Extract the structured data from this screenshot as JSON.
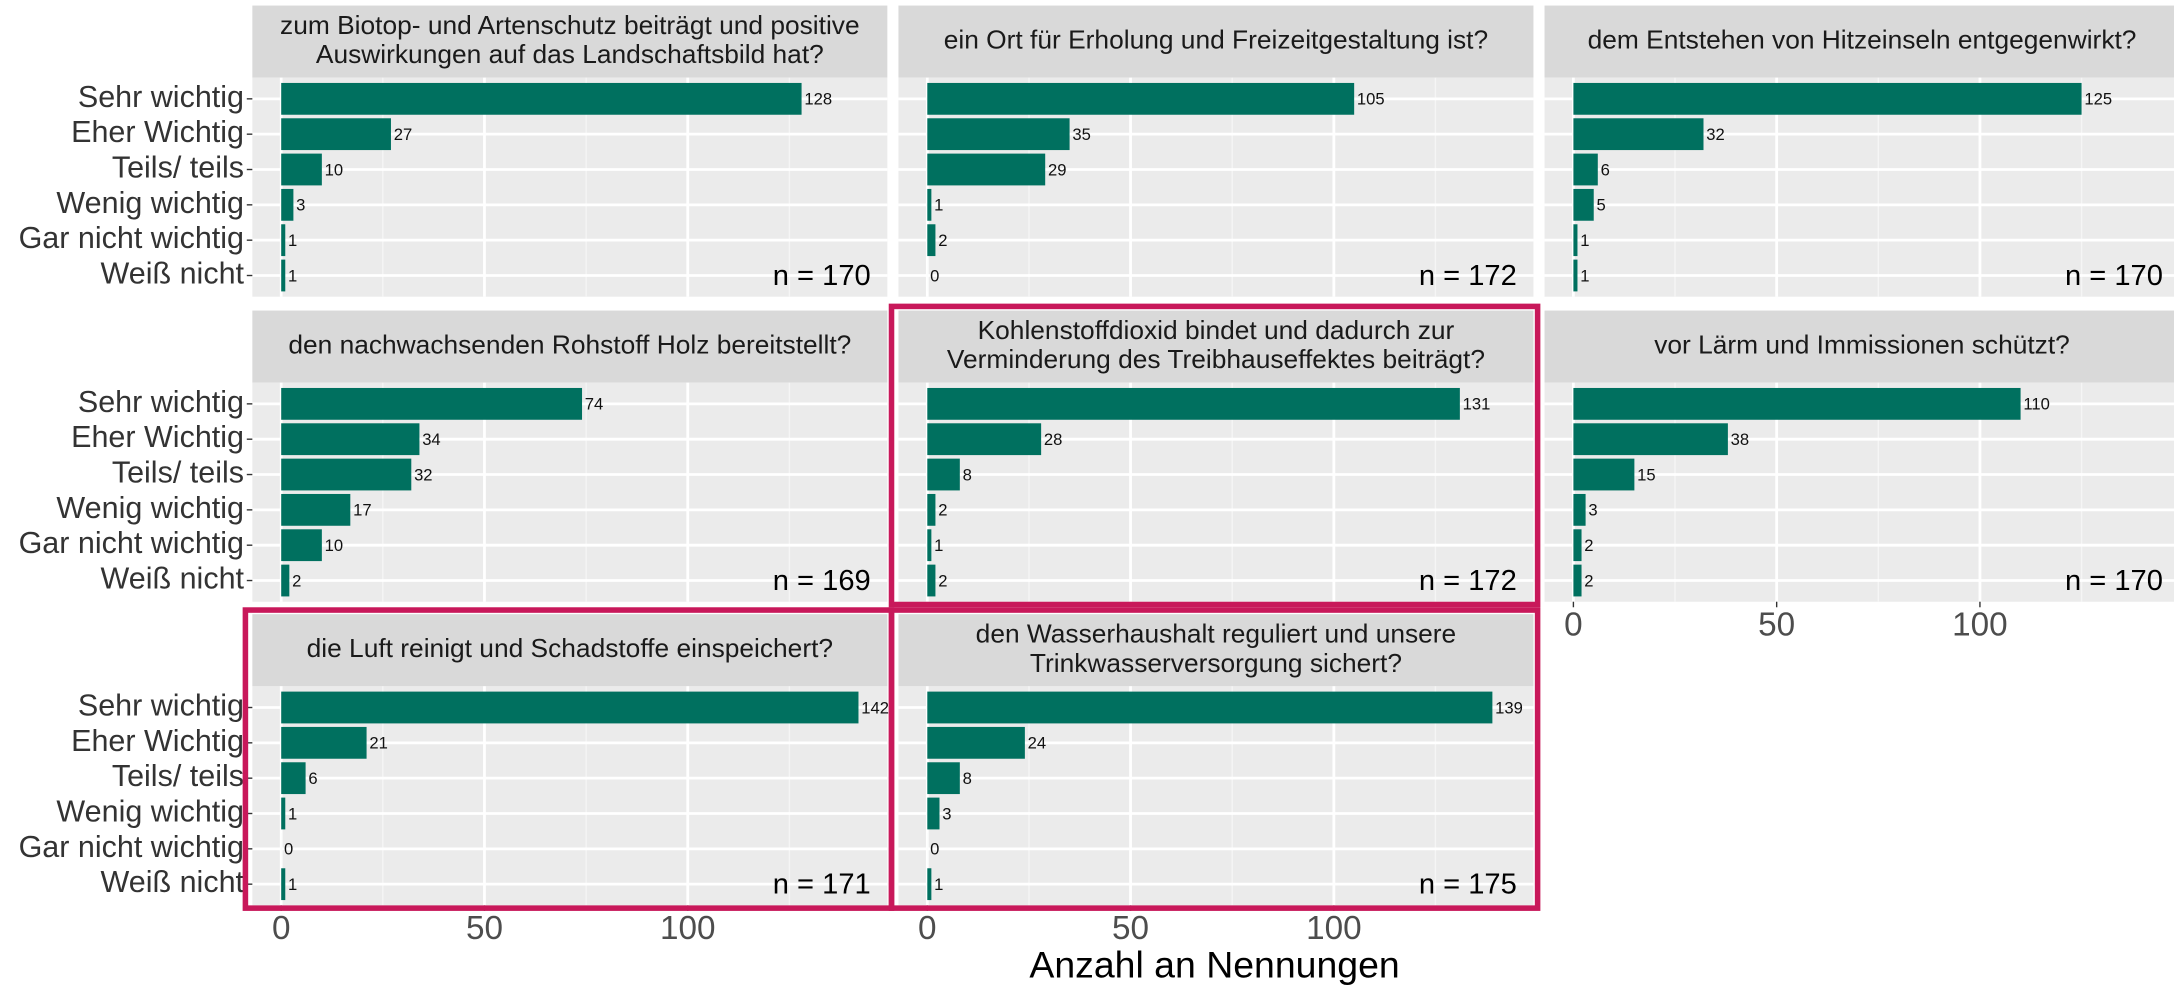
{
  "chart_data": {
    "type": "bar",
    "categories": [
      "Sehr wichtig",
      "Eher Wichtig",
      "Teils/ teils",
      "Wenig wichtig",
      "Gar nicht wichtig",
      "Weiß nicht"
    ],
    "color": "#00705f",
    "xlim": [
      -7.1,
      149.1
    ],
    "xticks": [
      0,
      50,
      100
    ],
    "xminor": [
      25,
      75,
      125
    ],
    "grid": true,
    "xlabel": "Anzahl an Nennungen",
    "highlight_color": "#c8185a",
    "facets": [
      {
        "title": [
          "zum Biotop- und Artenschutz beiträgt und positive",
          "Auswirkungen auf das Landschaftsbild hat?"
        ],
        "values": [
          128,
          27,
          10,
          3,
          1,
          1
        ],
        "annotation": "n = 170",
        "highlight": false
      },
      {
        "title": [
          "ein Ort für Erholung und Freizeitgestaltung ist?"
        ],
        "values": [
          105,
          35,
          29,
          1,
          2,
          0
        ],
        "annotation": "n = 172",
        "highlight": false
      },
      {
        "title": [
          "dem Entstehen von Hitzeinseln entgegenwirkt?"
        ],
        "values": [
          125,
          32,
          6,
          5,
          1,
          1
        ],
        "annotation": "n = 170",
        "highlight": false
      },
      {
        "title": [
          "den nachwachsenden Rohstoff Holz bereitstellt?"
        ],
        "values": [
          74,
          34,
          32,
          17,
          10,
          2
        ],
        "annotation": "n = 169",
        "highlight": false
      },
      {
        "title": [
          "Kohlenstoffdioxid bindet und dadurch zur",
          "Verminderung des Treibhauseffektes beiträgt?"
        ],
        "values": [
          131,
          28,
          8,
          2,
          1,
          2
        ],
        "annotation": "n = 172",
        "highlight": true
      },
      {
        "title": [
          "vor Lärm und Immissionen schützt?"
        ],
        "values": [
          110,
          38,
          15,
          3,
          2,
          2
        ],
        "annotation": "n = 170",
        "highlight": false
      },
      {
        "title": [
          "die Luft reinigt und Schadstoffe einspeichert?"
        ],
        "values": [
          142,
          21,
          6,
          1,
          0,
          1
        ],
        "annotation": "n = 171",
        "highlight": true
      },
      {
        "title": [
          "den Wasserhaushalt reguliert und unsere",
          "Trinkwasserversorgung sichert?"
        ],
        "values": [
          139,
          24,
          8,
          3,
          0,
          1
        ],
        "annotation": "n = 175",
        "highlight": true
      }
    ]
  }
}
